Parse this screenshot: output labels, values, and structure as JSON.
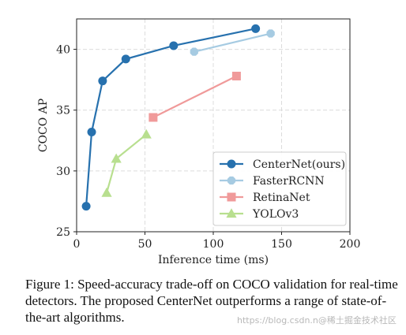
{
  "chart_data": {
    "type": "line",
    "title": "",
    "xlabel": "Inference time (ms)",
    "ylabel": "COCO AP",
    "xlim": [
      0,
      200
    ],
    "ylim": [
      25,
      42.5
    ],
    "xticks": [
      0,
      50,
      100,
      150,
      200
    ],
    "yticks": [
      25,
      30,
      35,
      40
    ],
    "grid": true,
    "legend_position": "bottom-right",
    "series": [
      {
        "name": "CenterNet(ours)",
        "color": "#2771ae",
        "marker": "circle",
        "points": [
          [
            7,
            27.1
          ],
          [
            11,
            33.2
          ],
          [
            19,
            37.4
          ],
          [
            36,
            39.2
          ],
          [
            71,
            40.3
          ],
          [
            131,
            41.7
          ]
        ]
      },
      {
        "name": "FasterRCNN",
        "color": "#a6cbe2",
        "marker": "octagon",
        "points": [
          [
            86,
            39.8
          ],
          [
            142,
            41.3
          ]
        ]
      },
      {
        "name": "RetinaNet",
        "color": "#f09a9a",
        "marker": "square",
        "points": [
          [
            56,
            34.4
          ],
          [
            117,
            37.8
          ]
        ]
      },
      {
        "name": "YOLOv3",
        "color": "#b8df8f",
        "marker": "triangle",
        "points": [
          [
            22,
            28.2
          ],
          [
            29,
            31.0
          ],
          [
            51,
            33.0
          ]
        ]
      }
    ]
  },
  "caption": "Figure 1: Speed-accuracy trade-off on COCO validation for real-time detectors. The proposed CenterNet outperforms a range of state-of-the-art algorithms.",
  "watermark": "https://blog.csdn.n@稀土掘金技术社区"
}
